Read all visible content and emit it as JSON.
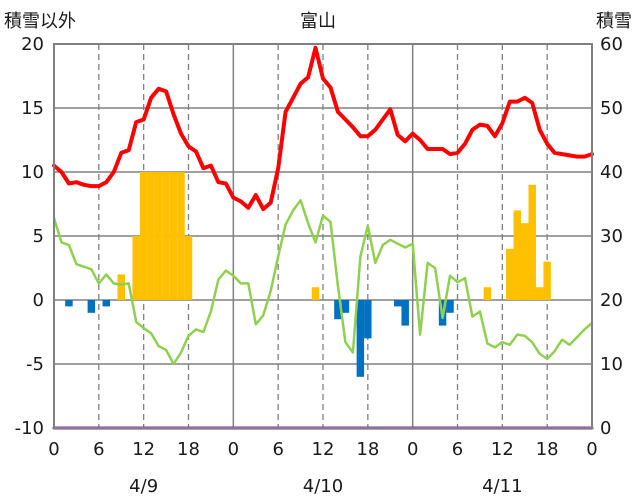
{
  "chart_data": {
    "type": "bar+line",
    "title": "富山",
    "left_axis_label": "積雪以外",
    "right_axis_label": "積雪",
    "left_ylim": [
      -10,
      20
    ],
    "left_ticks": [
      20,
      15,
      10,
      5,
      0,
      -5,
      -10
    ],
    "right_ylim": [
      0,
      60
    ],
    "right_ticks": [
      60,
      50,
      40,
      30,
      20,
      10,
      0
    ],
    "x_hours": [
      0,
      72
    ],
    "x_tick_labels": [
      "0",
      "6",
      "12",
      "18",
      "0",
      "6",
      "12",
      "18",
      "0",
      "6",
      "12",
      "18",
      "0"
    ],
    "date_labels": [
      {
        "label": "4/9",
        "hour": 12
      },
      {
        "label": "4/10",
        "hour": 36
      },
      {
        "label": "4/11",
        "hour": 60
      }
    ],
    "grid": "dashed vertical every 6h, solid at day boundaries and horizontal every 5 units",
    "series": [
      {
        "kind": "line",
        "color": "#ff0000",
        "points": [
          [
            0,
            10.5
          ],
          [
            1,
            10
          ],
          [
            2,
            9.1
          ],
          [
            3,
            9.2
          ],
          [
            4,
            9
          ],
          [
            5,
            8.9
          ],
          [
            6,
            8.9
          ],
          [
            7,
            9.2
          ],
          [
            8,
            10
          ],
          [
            9,
            11.5
          ],
          [
            10,
            11.7
          ],
          [
            11,
            13.9
          ],
          [
            12,
            14.1
          ],
          [
            13,
            15.8
          ],
          [
            14,
            16.5
          ],
          [
            15,
            16.3
          ],
          [
            16,
            14.5
          ],
          [
            17,
            13
          ],
          [
            18,
            12
          ],
          [
            19,
            11.6
          ],
          [
            20,
            10.3
          ],
          [
            21,
            10.5
          ],
          [
            22,
            9.2
          ],
          [
            23,
            9.1
          ],
          [
            24,
            8
          ],
          [
            25,
            7.7
          ],
          [
            26,
            7.2
          ],
          [
            27,
            8.2
          ],
          [
            28,
            7.1
          ],
          [
            29,
            7.6
          ],
          [
            30,
            10.3
          ],
          [
            31,
            14.7
          ],
          [
            32,
            15.8
          ],
          [
            33,
            16.9
          ],
          [
            34,
            17.4
          ],
          [
            35,
            19.7
          ],
          [
            36,
            17.3
          ],
          [
            37,
            16.6
          ],
          [
            38,
            14.7
          ],
          [
            39,
            14.1
          ],
          [
            40,
            13.5
          ],
          [
            41,
            12.8
          ],
          [
            42,
            12.8
          ],
          [
            43,
            13.3
          ],
          [
            44,
            14.1
          ],
          [
            45,
            14.9
          ],
          [
            46,
            12.9
          ],
          [
            47,
            12.4
          ],
          [
            48,
            13
          ],
          [
            49,
            12.5
          ],
          [
            50,
            11.8
          ],
          [
            51,
            11.8
          ],
          [
            52,
            11.8
          ],
          [
            53,
            11.4
          ],
          [
            54,
            11.5
          ],
          [
            55,
            12.2
          ],
          [
            56,
            13.3
          ],
          [
            57,
            13.7
          ],
          [
            58,
            13.6
          ],
          [
            59,
            12.8
          ],
          [
            60,
            13.8
          ],
          [
            61,
            15.5
          ],
          [
            62,
            15.5
          ],
          [
            63,
            15.8
          ],
          [
            64,
            15.4
          ],
          [
            65,
            13.3
          ],
          [
            66,
            12.2
          ],
          [
            67,
            11.5
          ],
          [
            68,
            11.4
          ],
          [
            69,
            11.3
          ],
          [
            70,
            11.2
          ],
          [
            71,
            11.2
          ],
          [
            72,
            11.4
          ]
        ]
      },
      {
        "kind": "line",
        "color": "#8fd14f",
        "points": [
          [
            0,
            6.4
          ],
          [
            1,
            4.5
          ],
          [
            2,
            4.3
          ],
          [
            3,
            2.8
          ],
          [
            4,
            2.6
          ],
          [
            5,
            2.4
          ],
          [
            6,
            1.3
          ],
          [
            7,
            2
          ],
          [
            8,
            1.3
          ],
          [
            9,
            1.2
          ],
          [
            10,
            1.3
          ],
          [
            11,
            -1.7
          ],
          [
            12,
            -2.2
          ],
          [
            13,
            -2.6
          ],
          [
            14,
            -3.6
          ],
          [
            15,
            -3.9
          ],
          [
            16,
            -5
          ],
          [
            17,
            -4.1
          ],
          [
            18,
            -2.8
          ],
          [
            19,
            -2.3
          ],
          [
            20,
            -2.5
          ],
          [
            21,
            -0.9
          ],
          [
            22,
            1.6
          ],
          [
            23,
            2.3
          ],
          [
            24,
            1.9
          ],
          [
            25,
            1.3
          ],
          [
            26,
            1.3
          ],
          [
            27,
            -1.9
          ],
          [
            28,
            -1.2
          ],
          [
            29,
            0.7
          ],
          [
            30,
            3.4
          ],
          [
            31,
            5.9
          ],
          [
            32,
            7
          ],
          [
            33,
            7.8
          ],
          [
            34,
            6
          ],
          [
            35,
            4.5
          ],
          [
            36,
            6.6
          ],
          [
            37,
            6.1
          ],
          [
            38,
            1.1
          ],
          [
            39,
            -3.3
          ],
          [
            40,
            -4.1
          ],
          [
            41,
            3.4
          ],
          [
            42,
            5.8
          ],
          [
            43,
            2.9
          ],
          [
            44,
            4.3
          ],
          [
            45,
            4.7
          ],
          [
            46,
            4.4
          ],
          [
            47,
            4.1
          ],
          [
            48,
            4.4
          ],
          [
            49,
            -2.7
          ],
          [
            50,
            2.9
          ],
          [
            51,
            2.5
          ],
          [
            52,
            -1.4
          ],
          [
            53,
            1.9
          ],
          [
            54,
            1.4
          ],
          [
            55,
            1.7
          ],
          [
            56,
            -1.3
          ],
          [
            57,
            -0.9
          ],
          [
            58,
            -3.4
          ],
          [
            59,
            -3.7
          ],
          [
            60,
            -3.3
          ],
          [
            61,
            -3.5
          ],
          [
            62,
            -2.7
          ],
          [
            63,
            -2.8
          ],
          [
            64,
            -3.3
          ],
          [
            65,
            -4.2
          ],
          [
            66,
            -4.6
          ],
          [
            67,
            -4
          ],
          [
            68,
            -3.1
          ],
          [
            69,
            -3.5
          ],
          [
            70,
            -2.9
          ],
          [
            71,
            -2.3
          ],
          [
            72,
            -1.8
          ]
        ]
      },
      {
        "kind": "line",
        "color": "#7030a0",
        "points": [
          [
            0,
            -10
          ],
          [
            72,
            -10
          ]
        ]
      },
      {
        "kind": "bar",
        "color": "#ffc000",
        "axis": "left",
        "bars": [
          [
            9,
            2
          ],
          [
            11,
            5
          ],
          [
            12,
            10
          ],
          [
            13,
            10
          ],
          [
            14,
            10
          ],
          [
            15,
            10
          ],
          [
            16,
            10
          ],
          [
            17,
            10
          ],
          [
            18,
            5
          ],
          [
            35,
            1
          ],
          [
            58,
            1
          ],
          [
            61,
            4
          ],
          [
            62,
            7
          ],
          [
            63,
            6
          ],
          [
            64,
            9
          ],
          [
            65,
            1
          ],
          [
            66,
            3
          ]
        ]
      },
      {
        "kind": "bar",
        "color": "#0070c0",
        "axis": "left",
        "bars": [
          [
            2,
            -0.5
          ],
          [
            5,
            -1
          ],
          [
            7,
            -0.5
          ],
          [
            38,
            -1.5
          ],
          [
            39,
            -1
          ],
          [
            41,
            -6
          ],
          [
            42,
            -3
          ],
          [
            46,
            -0.5
          ],
          [
            47,
            -2
          ],
          [
            52,
            -2
          ],
          [
            53,
            -1
          ]
        ]
      }
    ]
  }
}
